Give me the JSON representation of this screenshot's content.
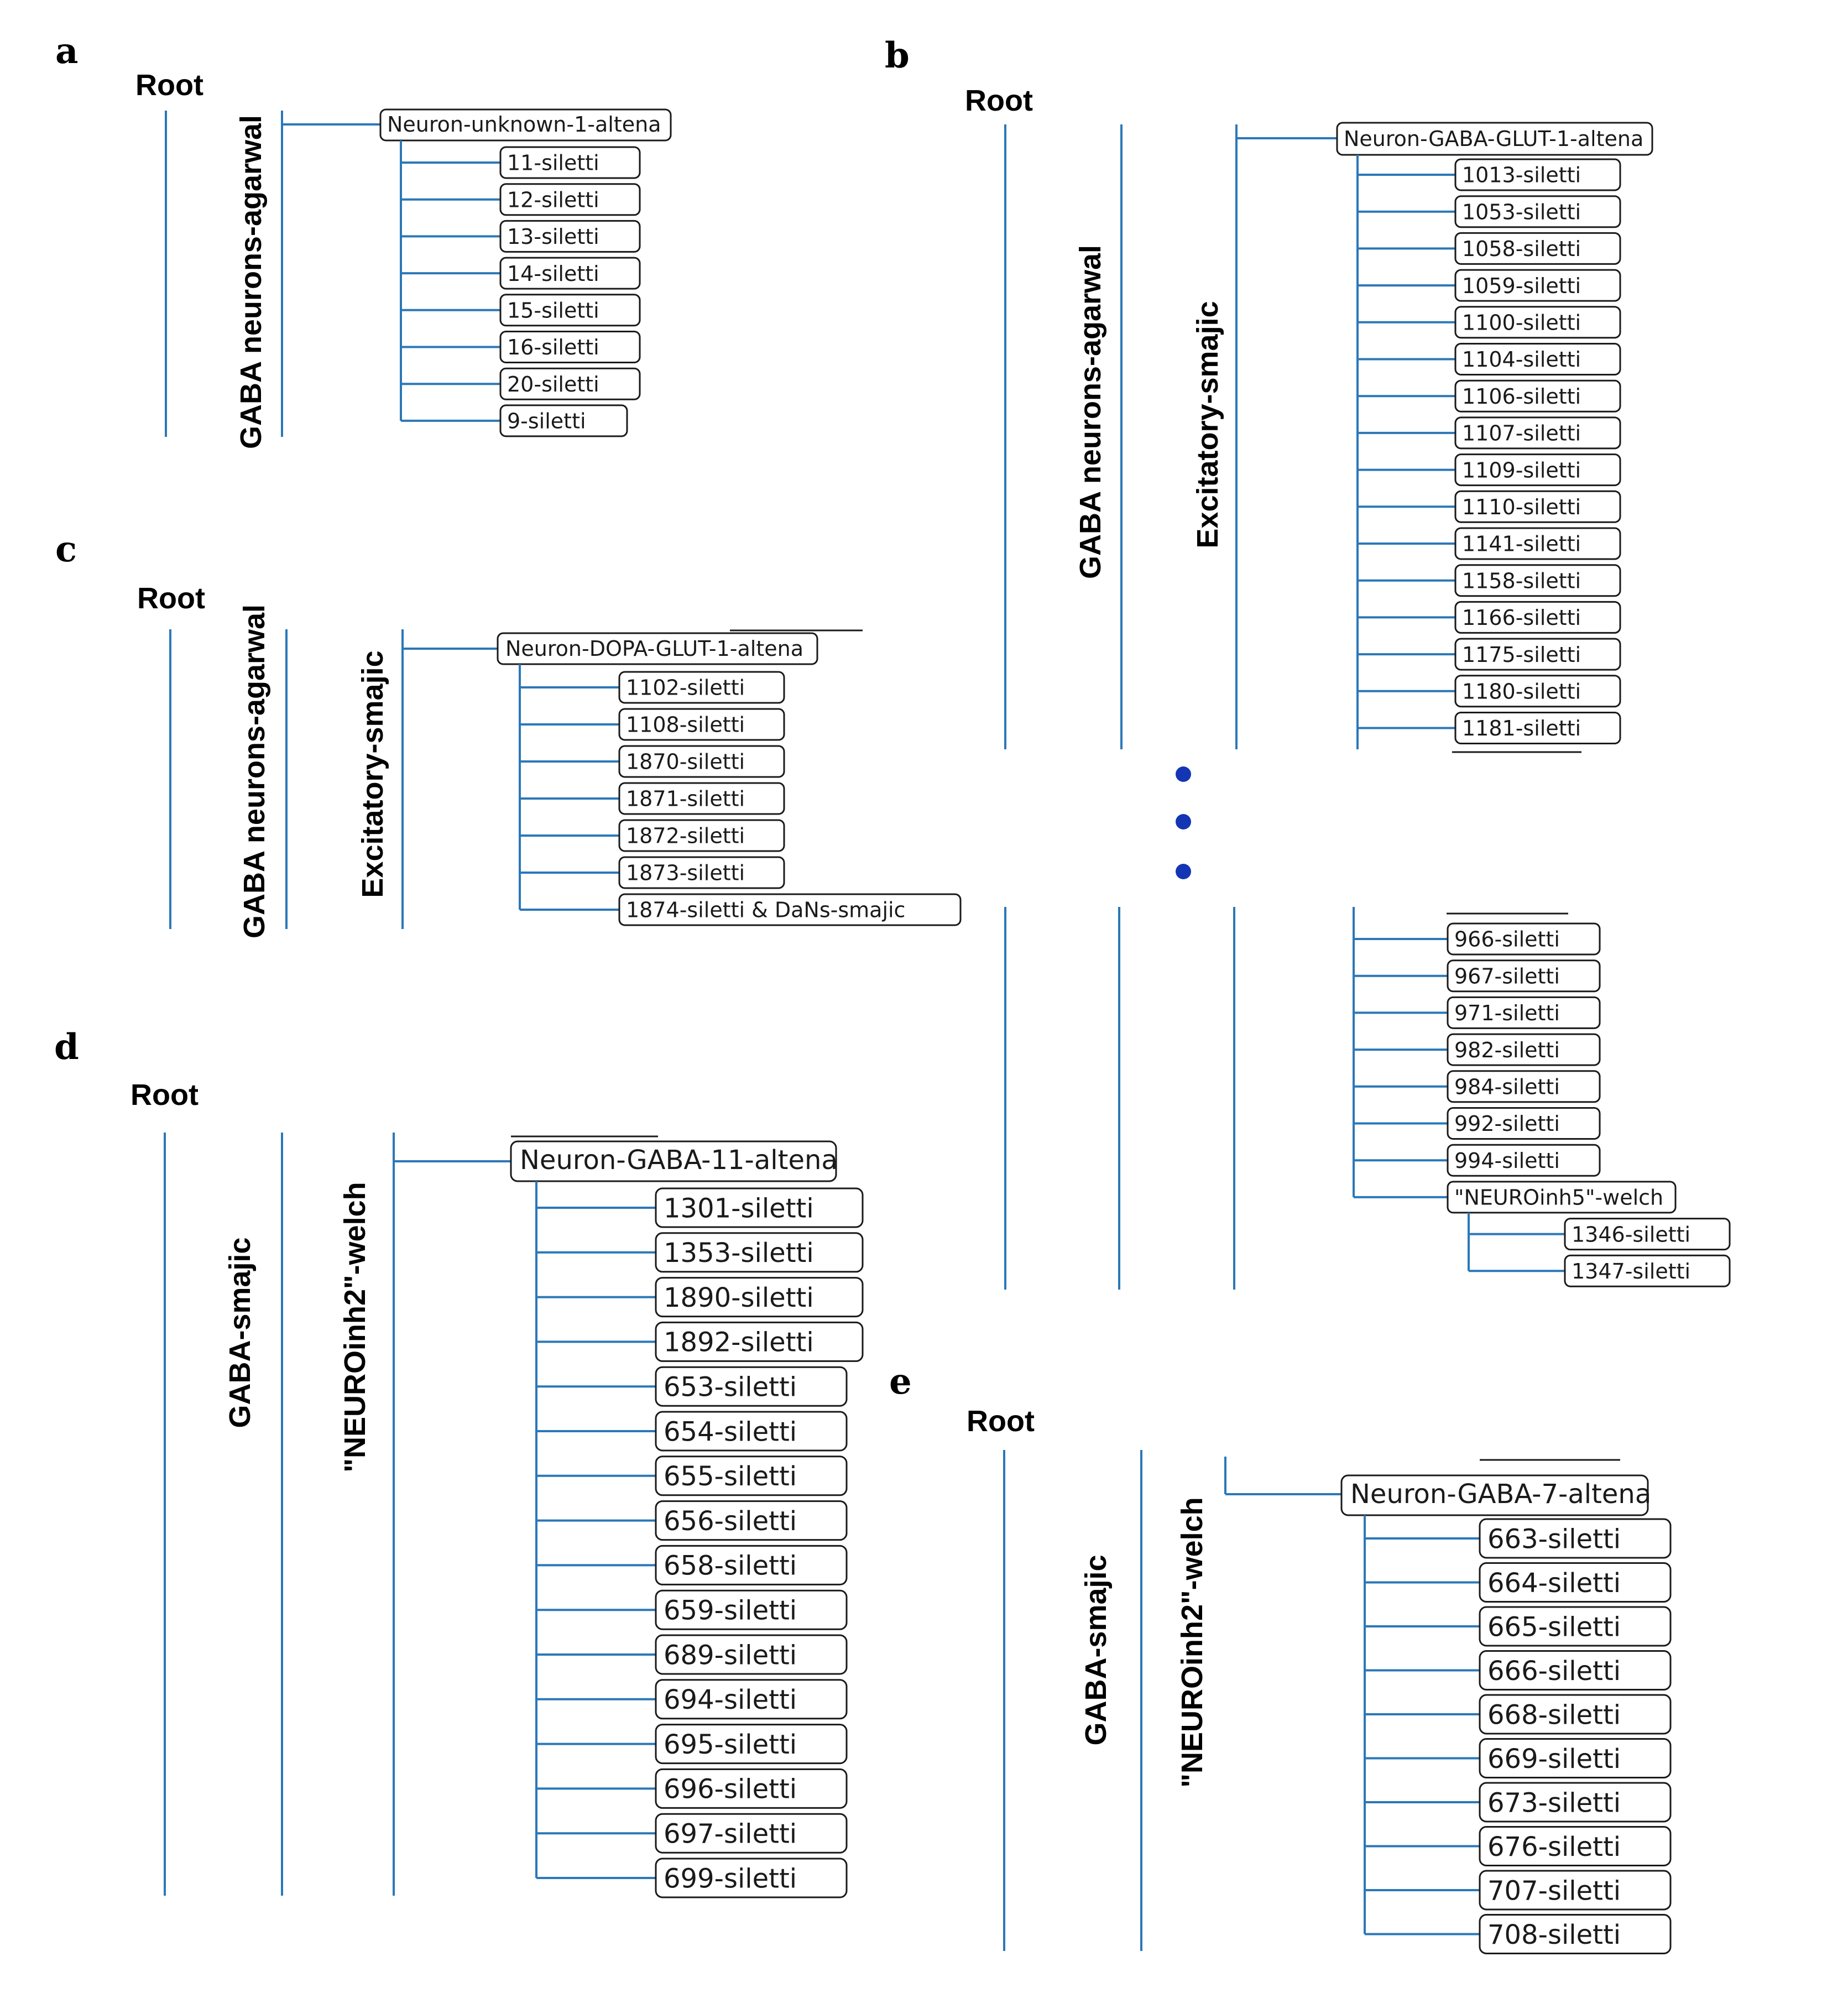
{
  "colors": {
    "line": "#2b78b8",
    "ellipsis_dot": "#1436b4",
    "box_stroke": "#1a1a1a"
  },
  "panels": [
    {
      "letter": "a",
      "root": "Root",
      "levels": [
        "GABA neurons-agarwal"
      ],
      "parent": "Neuron-unknown-1-altena",
      "children": [
        "11-siletti",
        "12-siletti",
        "13-siletti",
        "14-siletti",
        "15-siletti",
        "16-siletti",
        "20-siletti",
        "9-siletti"
      ]
    },
    {
      "letter": "b",
      "root": "Root",
      "levels": [
        "GABA neurons-agarwal",
        "Excitatory-smajic"
      ],
      "parent": "Neuron-GABA-GLUT-1-altena",
      "children": [
        "1013-siletti",
        "1053-siletti",
        "1058-siletti",
        "1059-siletti",
        "1100-siletti",
        "1104-siletti",
        "1106-siletti",
        "1107-siletti",
        "1109-siletti",
        "1110-siletti",
        "1141-siletti",
        "1158-siletti",
        "1166-siletti",
        "1175-siletti",
        "1180-siletti",
        "1181-siletti"
      ],
      "lower_children": [
        "966-siletti",
        "967-siletti",
        "971-siletti",
        "982-siletti",
        "984-siletti",
        "992-siletti",
        "994-siletti"
      ],
      "sub_parent": "\"NEUROinh5\"-welch",
      "sub_children": [
        "1346-siletti",
        "1347-siletti"
      ]
    },
    {
      "letter": "c",
      "root": "Root",
      "levels": [
        "GABA neurons-agarwal",
        "Excitatory-smajic"
      ],
      "parent": "Neuron-DOPA-GLUT-1-altena",
      "children": [
        "1102-siletti",
        "1108-siletti",
        "1870-siletti",
        "1871-siletti",
        "1872-siletti",
        "1873-siletti",
        "1874-siletti & DaNs-smajic"
      ]
    },
    {
      "letter": "d",
      "root": "Root",
      "levels": [
        "GABA-smajic",
        "\"NEUROinh2\"-welch"
      ],
      "parent": "Neuron-GABA-11-altena",
      "children": [
        "1301-siletti",
        "1353-siletti",
        "1890-siletti",
        "1892-siletti",
        "653-siletti",
        "654-siletti",
        "655-siletti",
        "656-siletti",
        "658-siletti",
        "659-siletti",
        "689-siletti",
        "694-siletti",
        "695-siletti",
        "696-siletti",
        "697-siletti",
        "699-siletti"
      ]
    },
    {
      "letter": "e",
      "root": "Root",
      "levels": [
        "GABA-smajic",
        "\"NEUROinh2\"-welch"
      ],
      "parent": "Neuron-GABA-7-altena",
      "children": [
        "663-siletti",
        "664-siletti",
        "665-siletti",
        "666-siletti",
        "668-siletti",
        "669-siletti",
        "673-siletti",
        "676-siletti",
        "707-siletti",
        "708-siletti"
      ]
    }
  ]
}
